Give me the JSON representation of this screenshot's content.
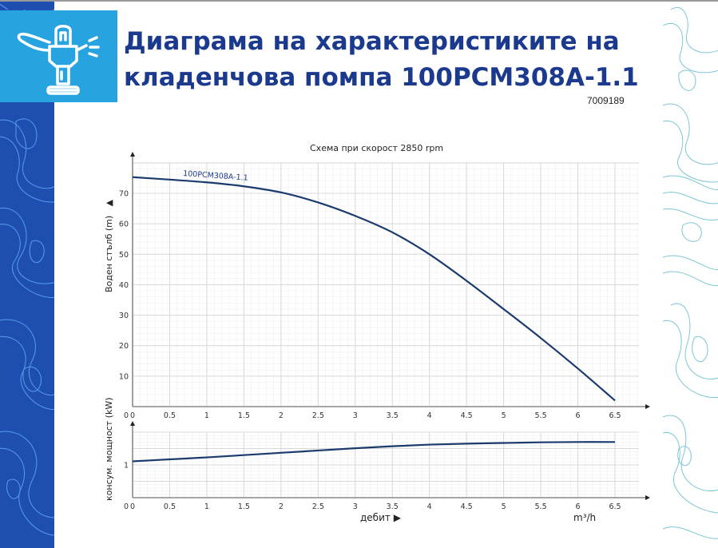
{
  "header": {
    "icon": "sprinkler-icon",
    "title_line1": "Диаграма на характеристиките на",
    "title_line2": "кладенчова помпа 100PCM308A-1.1",
    "code": "7009189"
  },
  "colors": {
    "brand_blue": "#1e4fb0",
    "accent_light_blue": "#27a3e0",
    "title_color": "#1b3a8e",
    "curve_color": "#1b3a6e",
    "grid_major": "#d8d8d8",
    "grid_minor": "#efefef"
  },
  "chart_data": [
    {
      "type": "line",
      "title": "Схема при скорост 2850 rpm",
      "xlabel": "дебит",
      "ylabel": "Воден стълб (m)",
      "x_unit": "m³/h",
      "x_ticks": [
        "0",
        "0.5",
        "1",
        "1.5",
        "2",
        "2.5",
        "3",
        "3.5",
        "4",
        "4.5",
        "5",
        "5.5",
        "6",
        "6.5"
      ],
      "y_ticks": [
        "10",
        "20",
        "30",
        "40",
        "50",
        "60",
        "70"
      ],
      "xlim": [
        0,
        6.8
      ],
      "ylim": [
        0,
        78
      ],
      "grid": true,
      "series": [
        {
          "name": "100PCM308A-1.1",
          "x": [
            0,
            0.5,
            1,
            1.5,
            2,
            2.5,
            3,
            3.5,
            4,
            4.5,
            5,
            5.5,
            6,
            6.5
          ],
          "values": [
            75.3,
            74.5,
            73.6,
            72.3,
            70.3,
            67,
            62.6,
            57.2,
            50,
            41.3,
            32,
            22.5,
            12.5,
            2
          ]
        }
      ]
    },
    {
      "type": "line",
      "title": "",
      "xlabel": "дебит",
      "ylabel": "консум. мощност (kW)",
      "x_unit": "m³/h",
      "x_ticks": [
        "0",
        "0.5",
        "1",
        "1.5",
        "2",
        "2.5",
        "3",
        "3.5",
        "4",
        "4.5",
        "5",
        "5.5",
        "6",
        "6.5"
      ],
      "y_ticks": [
        "1"
      ],
      "xlim": [
        0,
        6.8
      ],
      "ylim": [
        0,
        2.0
      ],
      "grid": true,
      "series": [
        {
          "name": "100PCM308A-1.1",
          "x": [
            0,
            0.5,
            1,
            1.5,
            2,
            2.5,
            3,
            3.5,
            4,
            4.5,
            5,
            5.5,
            6,
            6.5
          ],
          "values": [
            1.11,
            1.17,
            1.23,
            1.3,
            1.37,
            1.44,
            1.51,
            1.57,
            1.62,
            1.65,
            1.67,
            1.69,
            1.7,
            1.7
          ]
        }
      ]
    }
  ],
  "labels": {
    "chart_title": "Схема при скорост 2850 rpm",
    "series_label": "100PCM308A-1.1",
    "y1_label": "Воден стълб (m)",
    "y2_label": "консум. мощност (kW)",
    "x_label": "дебит",
    "x_unit": "m³/h"
  }
}
